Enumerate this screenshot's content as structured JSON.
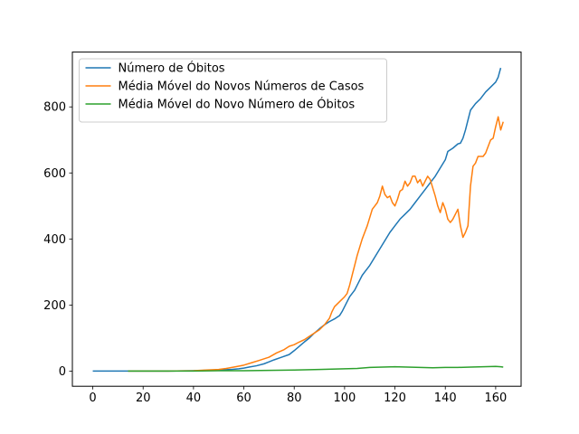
{
  "chart_data": {
    "type": "line",
    "title": "",
    "xlabel": "",
    "ylabel": "",
    "xlim": [
      -8.1,
      170.1
    ],
    "ylim": [
      -46,
      966
    ],
    "xticks": [
      0,
      20,
      40,
      60,
      80,
      100,
      120,
      140,
      160
    ],
    "yticks": [
      0,
      200,
      400,
      600,
      800
    ],
    "grid": false,
    "legend": "top-left",
    "series": [
      {
        "name": "Número de Óbitos",
        "color": "#1f77b4",
        "points": [
          [
            0,
            0
          ],
          [
            10,
            0
          ],
          [
            20,
            0
          ],
          [
            30,
            0
          ],
          [
            40,
            1
          ],
          [
            45,
            2
          ],
          [
            50,
            3
          ],
          [
            55,
            5
          ],
          [
            58,
            7
          ],
          [
            60,
            9
          ],
          [
            62,
            12
          ],
          [
            65,
            16
          ],
          [
            68,
            22
          ],
          [
            70,
            28
          ],
          [
            72,
            34
          ],
          [
            75,
            42
          ],
          [
            78,
            50
          ],
          [
            80,
            62
          ],
          [
            82,
            75
          ],
          [
            84,
            88
          ],
          [
            86,
            100
          ],
          [
            88,
            115
          ],
          [
            90,
            128
          ],
          [
            92,
            140
          ],
          [
            94,
            150
          ],
          [
            96,
            158
          ],
          [
            98,
            168
          ],
          [
            99,
            180
          ],
          [
            100,
            195
          ],
          [
            101,
            210
          ],
          [
            102,
            225
          ],
          [
            104,
            245
          ],
          [
            105,
            260
          ],
          [
            106,
            275
          ],
          [
            107,
            290
          ],
          [
            108,
            300
          ],
          [
            110,
            320
          ],
          [
            112,
            345
          ],
          [
            114,
            370
          ],
          [
            116,
            395
          ],
          [
            118,
            420
          ],
          [
            120,
            440
          ],
          [
            122,
            460
          ],
          [
            124,
            475
          ],
          [
            126,
            490
          ],
          [
            128,
            510
          ],
          [
            130,
            530
          ],
          [
            132,
            550
          ],
          [
            134,
            570
          ],
          [
            136,
            590
          ],
          [
            138,
            615
          ],
          [
            140,
            640
          ],
          [
            141,
            665
          ],
          [
            143,
            675
          ],
          [
            145,
            688
          ],
          [
            146,
            690
          ],
          [
            147,
            705
          ],
          [
            148,
            730
          ],
          [
            149,
            760
          ],
          [
            150,
            790
          ],
          [
            152,
            810
          ],
          [
            154,
            825
          ],
          [
            156,
            845
          ],
          [
            158,
            860
          ],
          [
            160,
            875
          ],
          [
            161,
            890
          ],
          [
            162,
            918
          ]
        ]
      },
      {
        "name": "Média Móvel do Novos Números de Casos",
        "color": "#ff7f0e",
        "points": [
          [
            14,
            0
          ],
          [
            20,
            0
          ],
          [
            30,
            0
          ],
          [
            40,
            1
          ],
          [
            45,
            3
          ],
          [
            50,
            5
          ],
          [
            53,
            8
          ],
          [
            56,
            12
          ],
          [
            60,
            18
          ],
          [
            63,
            25
          ],
          [
            66,
            32
          ],
          [
            70,
            42
          ],
          [
            73,
            55
          ],
          [
            76,
            65
          ],
          [
            78,
            75
          ],
          [
            80,
            80
          ],
          [
            82,
            88
          ],
          [
            84,
            95
          ],
          [
            86,
            105
          ],
          [
            88,
            115
          ],
          [
            90,
            125
          ],
          [
            92,
            140
          ],
          [
            94,
            160
          ],
          [
            95,
            180
          ],
          [
            96,
            195
          ],
          [
            98,
            210
          ],
          [
            100,
            225
          ],
          [
            101,
            235
          ],
          [
            102,
            260
          ],
          [
            103,
            290
          ],
          [
            104,
            320
          ],
          [
            105,
            350
          ],
          [
            106,
            375
          ],
          [
            107,
            400
          ],
          [
            108,
            420
          ],
          [
            109,
            440
          ],
          [
            110,
            465
          ],
          [
            111,
            490
          ],
          [
            112,
            500
          ],
          [
            113,
            510
          ],
          [
            114,
            530
          ],
          [
            115,
            560
          ],
          [
            116,
            535
          ],
          [
            117,
            525
          ],
          [
            118,
            530
          ],
          [
            119,
            510
          ],
          [
            120,
            500
          ],
          [
            121,
            520
          ],
          [
            122,
            545
          ],
          [
            123,
            550
          ],
          [
            124,
            575
          ],
          [
            125,
            560
          ],
          [
            126,
            570
          ],
          [
            127,
            590
          ],
          [
            128,
            590
          ],
          [
            129,
            570
          ],
          [
            130,
            580
          ],
          [
            131,
            560
          ],
          [
            132,
            575
          ],
          [
            133,
            590
          ],
          [
            134,
            580
          ],
          [
            135,
            555
          ],
          [
            136,
            530
          ],
          [
            137,
            500
          ],
          [
            138,
            480
          ],
          [
            139,
            510
          ],
          [
            140,
            490
          ],
          [
            141,
            460
          ],
          [
            142,
            450
          ],
          [
            143,
            460
          ],
          [
            144,
            475
          ],
          [
            145,
            490
          ],
          [
            146,
            440
          ],
          [
            147,
            405
          ],
          [
            148,
            420
          ],
          [
            149,
            440
          ],
          [
            150,
            560
          ],
          [
            151,
            620
          ],
          [
            152,
            630
          ],
          [
            153,
            650
          ],
          [
            155,
            650
          ],
          [
            156,
            660
          ],
          [
            158,
            700
          ],
          [
            159,
            705
          ],
          [
            160,
            740
          ],
          [
            161,
            770
          ],
          [
            162,
            730
          ],
          [
            163,
            755
          ]
        ]
      },
      {
        "name": "Média Móvel do Novo Número de Óbitos",
        "color": "#2ca02c",
        "points": [
          [
            14,
            0
          ],
          [
            30,
            0
          ],
          [
            40,
            0
          ],
          [
            50,
            1
          ],
          [
            60,
            1
          ],
          [
            70,
            2
          ],
          [
            80,
            3
          ],
          [
            90,
            5
          ],
          [
            100,
            7
          ],
          [
            105,
            8
          ],
          [
            110,
            11
          ],
          [
            115,
            12
          ],
          [
            120,
            13
          ],
          [
            125,
            12
          ],
          [
            130,
            11
          ],
          [
            135,
            10
          ],
          [
            140,
            11
          ],
          [
            145,
            11
          ],
          [
            150,
            12
          ],
          [
            155,
            13
          ],
          [
            160,
            14
          ],
          [
            162,
            13
          ],
          [
            163,
            12
          ]
        ]
      }
    ]
  }
}
